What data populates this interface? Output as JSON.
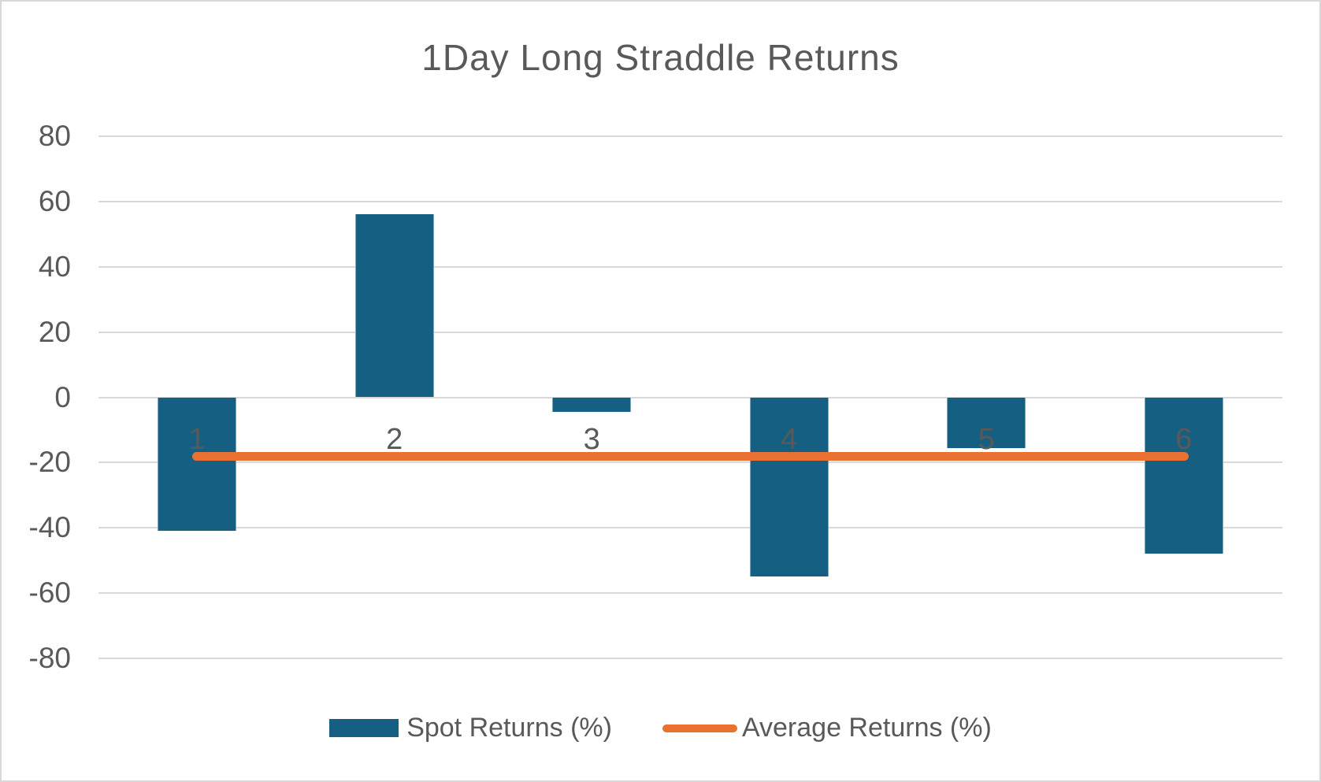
{
  "chart_data": {
    "type": "bar",
    "title": "1Day Long Straddle Returns",
    "categories": [
      "1",
      "2",
      "3",
      "4",
      "5",
      "6"
    ],
    "series": [
      {
        "name": "Spot Returns (%)",
        "type": "bar",
        "color": "#156082",
        "values": [
          -41,
          56,
          -4.5,
          -55,
          -15.5,
          -48
        ]
      },
      {
        "name": "Average Returns (%)",
        "type": "line",
        "color": "#E97132",
        "values": [
          -18,
          -18,
          -18,
          -18,
          -18,
          -18
        ]
      }
    ],
    "ylim": [
      -80,
      80
    ],
    "yticks": [
      80,
      60,
      40,
      20,
      0,
      -20,
      -40,
      -60,
      -80
    ],
    "grid": true,
    "legend_position": "bottom",
    "colors": {
      "text": "#595959",
      "gridline": "#D9D9D9",
      "frame_border": "#D9D7D7",
      "background": "#FFFFFF"
    }
  }
}
